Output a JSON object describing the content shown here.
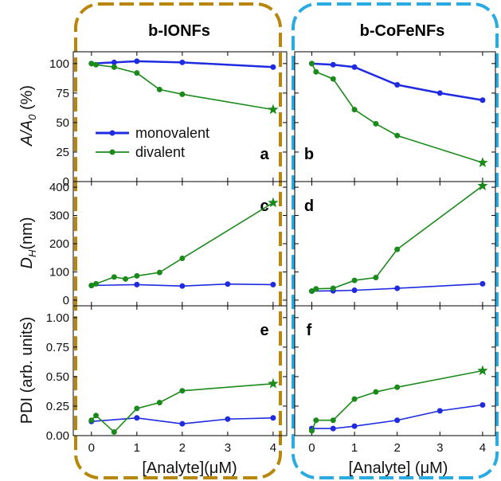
{
  "panel_titles": [
    "b-IONFs",
    "b-CoFeNFs"
  ],
  "box_colors": [
    "#b8860b",
    "#29abe2"
  ],
  "series_colors": {
    "monovalent": "#1f2be0",
    "divalent": "#1a8a1a"
  },
  "ylabels": {
    "top": "A/A",
    "top_sub": "0",
    "top_unit": " (%)",
    "mid": "D",
    "mid_sub": "H",
    "mid_unit": "(nm)",
    "bot": "PDI (arb. units)"
  },
  "xlabels": {
    "left": "[Analyte](μM)",
    "right": "[Analyte] (μM)"
  },
  "chart_data": [
    {
      "type": "line",
      "panel": "a",
      "row": 0,
      "col": 0,
      "ylim": [
        0,
        110
      ],
      "yticks": [
        "0",
        "25",
        "50",
        "75",
        "100"
      ],
      "ytick_vals": [
        0,
        25,
        50,
        75,
        100
      ],
      "xlim": [
        -0.4,
        4.3
      ],
      "legend": [
        "monovalent",
        "divalent"
      ],
      "series": [
        {
          "name": "monovalent",
          "x": [
            0,
            0.5,
            1,
            2,
            4
          ],
          "y": [
            100,
            101,
            102,
            101,
            97
          ]
        },
        {
          "name": "divalent",
          "x": [
            0,
            0.1,
            0.5,
            1,
            1.5,
            2,
            4
          ],
          "y": [
            100,
            99,
            97,
            92,
            78,
            74,
            61
          ]
        }
      ]
    },
    {
      "type": "line",
      "panel": "b",
      "row": 0,
      "col": 1,
      "ylim": [
        0,
        110
      ],
      "xlim": [
        -0.4,
        4.3
      ],
      "series": [
        {
          "name": "monovalent",
          "x": [
            0,
            0.5,
            1,
            2,
            3,
            4
          ],
          "y": [
            100,
            99,
            97,
            82,
            75,
            69
          ]
        },
        {
          "name": "divalent",
          "x": [
            0,
            0.1,
            0.5,
            1,
            1.5,
            2,
            4
          ],
          "y": [
            100,
            93,
            87,
            61,
            49,
            39,
            16
          ]
        }
      ]
    },
    {
      "type": "line",
      "panel": "c",
      "row": 1,
      "col": 0,
      "ylim": [
        -20,
        420
      ],
      "yticks": [
        "0",
        "100",
        "200",
        "300",
        "400"
      ],
      "ytick_vals": [
        0,
        100,
        200,
        300,
        400
      ],
      "xlim": [
        -0.4,
        4.3
      ],
      "series": [
        {
          "name": "monovalent",
          "x": [
            0,
            1,
            2,
            3,
            4
          ],
          "y": [
            52,
            55,
            50,
            57,
            55
          ]
        },
        {
          "name": "divalent",
          "x": [
            0,
            0.1,
            0.5,
            0.75,
            1,
            1.5,
            2,
            4
          ],
          "y": [
            52,
            58,
            82,
            75,
            86,
            98,
            148,
            345
          ]
        }
      ]
    },
    {
      "type": "line",
      "panel": "d",
      "row": 1,
      "col": 1,
      "ylim": [
        -20,
        420
      ],
      "xlim": [
        -0.4,
        4.3
      ],
      "series": [
        {
          "name": "monovalent",
          "x": [
            0,
            0.5,
            1,
            2,
            4
          ],
          "y": [
            32,
            33,
            35,
            42,
            58
          ]
        },
        {
          "name": "divalent",
          "x": [
            0,
            0.1,
            0.5,
            1,
            1.5,
            2,
            4
          ],
          "y": [
            32,
            40,
            42,
            70,
            80,
            180,
            405
          ]
        }
      ]
    },
    {
      "type": "line",
      "panel": "e",
      "row": 2,
      "col": 0,
      "ylim": [
        0,
        1.1
      ],
      "yticks": [
        "0.00",
        "0.25",
        "0.50",
        "0.75",
        "1.00"
      ],
      "ytick_vals": [
        0,
        0.25,
        0.5,
        0.75,
        1
      ],
      "xlim": [
        -0.4,
        4.3
      ],
      "series": [
        {
          "name": "monovalent",
          "x": [
            0,
            1,
            2,
            3,
            4
          ],
          "y": [
            0.12,
            0.15,
            0.1,
            0.14,
            0.15
          ]
        },
        {
          "name": "divalent",
          "x": [
            0,
            0.1,
            0.5,
            1,
            1.5,
            2,
            4
          ],
          "y": [
            0.13,
            0.17,
            0.03,
            0.23,
            0.28,
            0.38,
            0.44
          ]
        }
      ]
    },
    {
      "type": "line",
      "panel": "f",
      "row": 2,
      "col": 1,
      "ylim": [
        0,
        1.1
      ],
      "xlim": [
        -0.4,
        4.3
      ],
      "series": [
        {
          "name": "monovalent",
          "x": [
            0,
            0.5,
            1,
            2,
            3,
            4
          ],
          "y": [
            0.06,
            0.06,
            0.08,
            0.13,
            0.21,
            0.26
          ]
        },
        {
          "name": "divalent",
          "x": [
            0,
            0.1,
            0.5,
            1,
            1.5,
            2,
            4
          ],
          "y": [
            0.04,
            0.13,
            0.13,
            0.31,
            0.37,
            0.41,
            0.55
          ]
        }
      ]
    }
  ],
  "xticks": [
    "0",
    "1",
    "2",
    "3",
    "4"
  ],
  "xtick_vals": [
    0,
    1,
    2,
    3,
    4
  ]
}
